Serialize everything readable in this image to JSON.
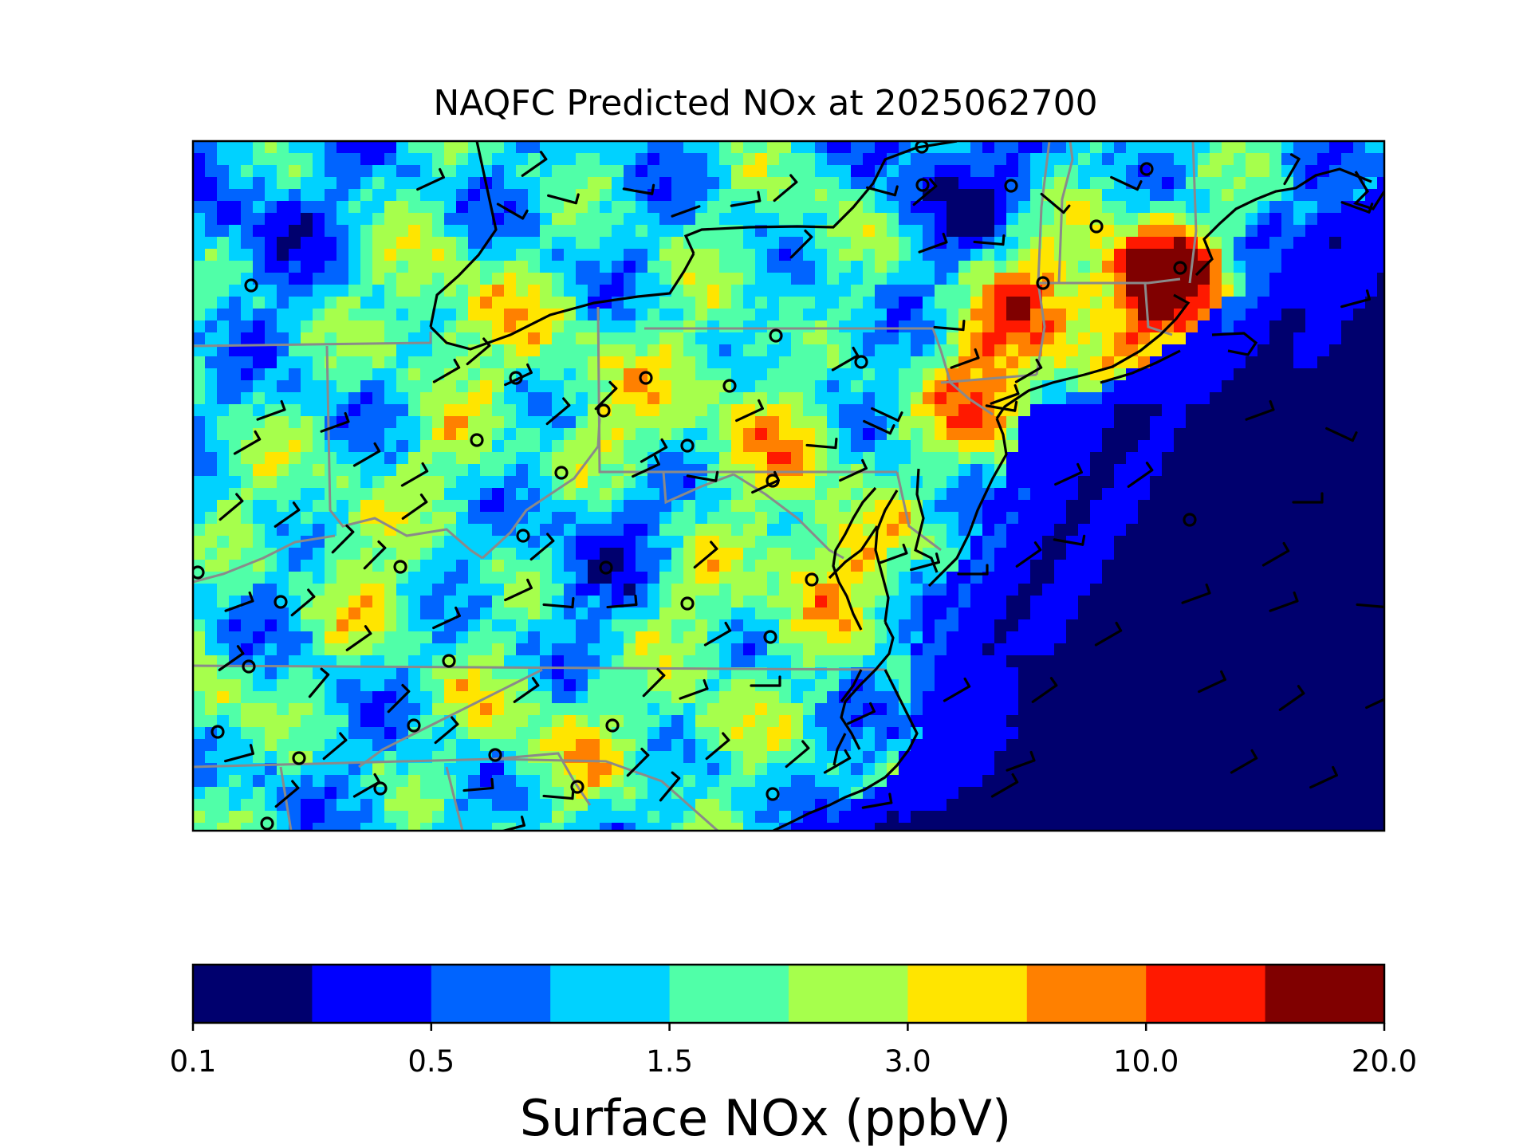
{
  "title": "NAQFC Predicted NOx at 2025062700",
  "colorbar": {
    "label": "Surface NOx (ppbV)",
    "colors": [
      "#00006e",
      "#0000ff",
      "#0064ff",
      "#00d2ff",
      "#50ffa8",
      "#a6ff4c",
      "#ffe500",
      "#ff8000",
      "#ff1900",
      "#800000"
    ],
    "ticks": [
      {
        "label": "0.1",
        "index": 0
      },
      {
        "label": "0.5",
        "index": 2
      },
      {
        "label": "1.5",
        "index": 4
      },
      {
        "label": "3.0",
        "index": 6
      },
      {
        "label": "10.0",
        "index": 8
      },
      {
        "label": "20.0",
        "index": 10
      }
    ]
  },
  "map": {
    "region": "Northeastern United States and adjacent Atlantic",
    "field": "Surface NOx concentration (gridded)",
    "overlays": [
      "state-boundaries",
      "coastlines",
      "wind-barbs",
      "observation-site-markers"
    ]
  }
}
